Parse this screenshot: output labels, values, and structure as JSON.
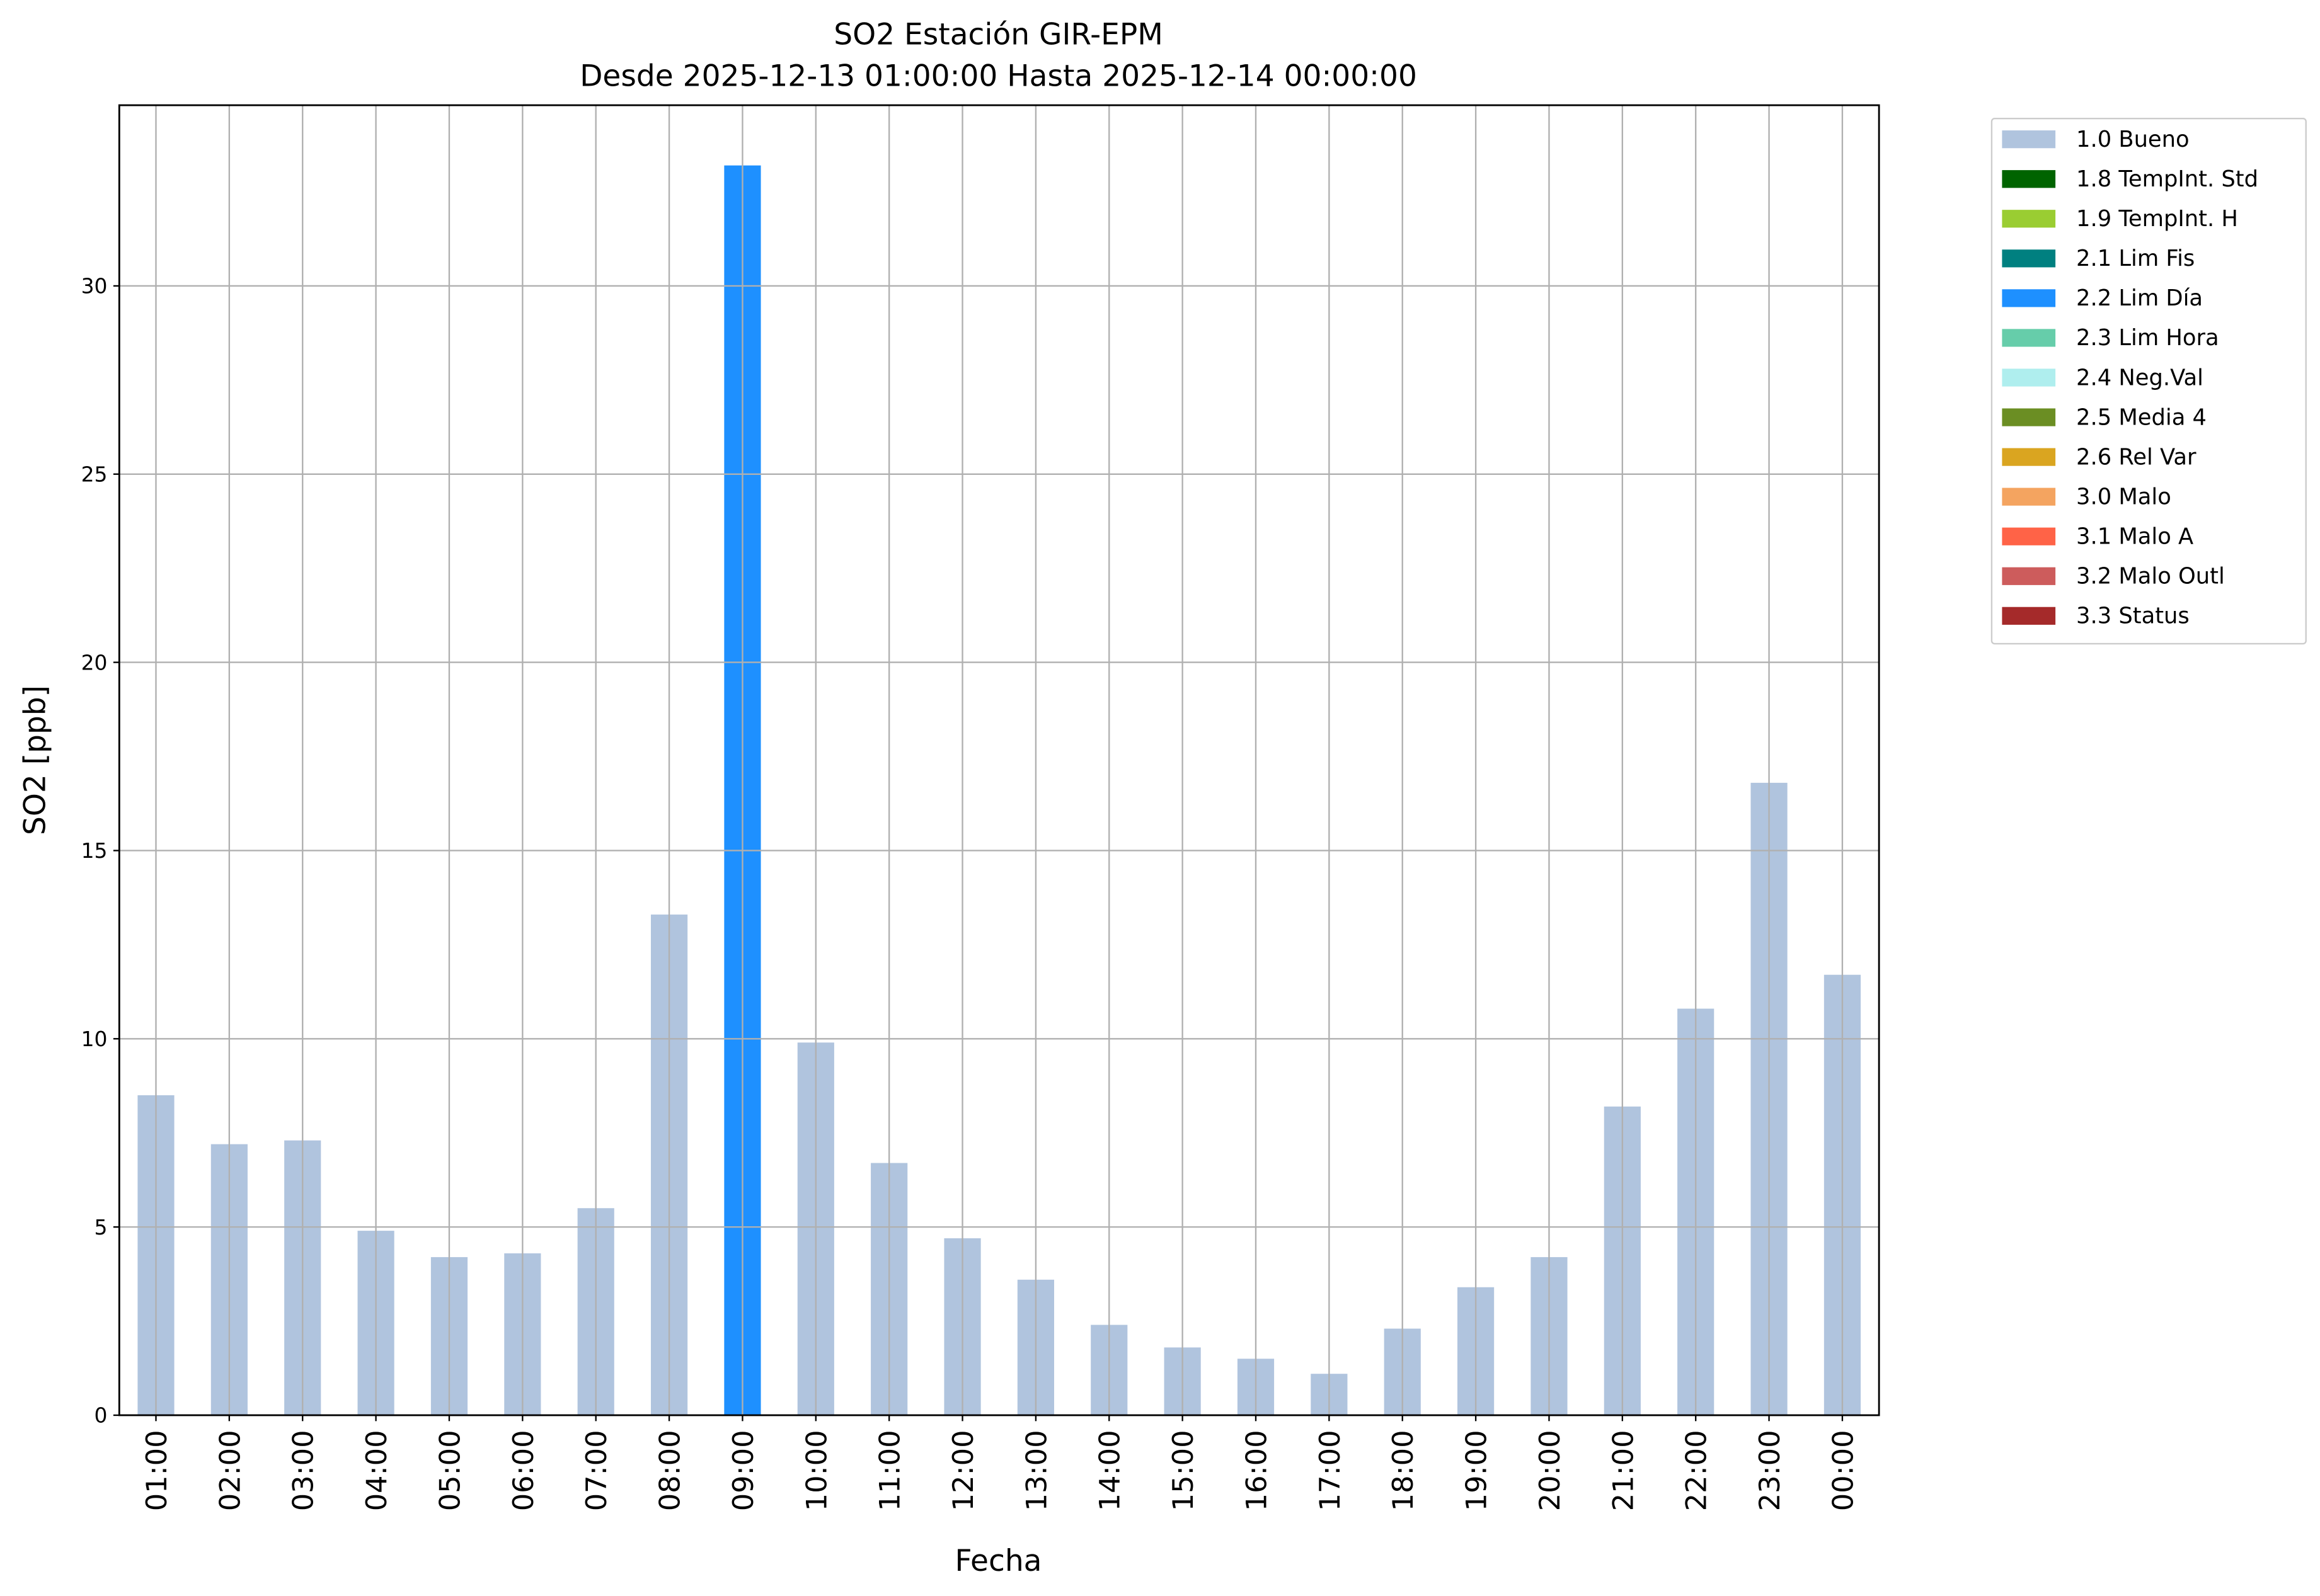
{
  "chart_data": {
    "type": "bar",
    "stacked": true,
    "title": "SO2 Estación GIR-EPM",
    "subtitle": "Desde 2025-12-13 01:00:00 Hasta 2025-12-14 00:00:00",
    "x_label": "Fecha",
    "y_label": "SO2 [ppb]",
    "categories": [
      "01:00",
      "02:00",
      "03:00",
      "04:00",
      "05:00",
      "06:00",
      "07:00",
      "08:00",
      "09:00",
      "10:00",
      "11:00",
      "12:00",
      "13:00",
      "14:00",
      "15:00",
      "16:00",
      "17:00",
      "18:00",
      "19:00",
      "20:00",
      "21:00",
      "22:00",
      "23:00",
      "00:00"
    ],
    "series": [
      {
        "name": "1.0 Bueno",
        "color": "#b0c4de",
        "values": [
          8.5,
          7.2,
          7.3,
          4.9,
          4.2,
          4.3,
          5.5,
          13.3,
          null,
          9.9,
          6.7,
          4.7,
          3.6,
          2.4,
          1.8,
          1.5,
          1.1,
          2.3,
          3.4,
          4.2,
          8.2,
          10.8,
          16.8,
          11.7
        ]
      },
      {
        "name": "1.8 TempInt. Std",
        "color": "#006400",
        "values": [
          null,
          null,
          null,
          null,
          null,
          null,
          null,
          null,
          null,
          null,
          null,
          null,
          null,
          null,
          null,
          null,
          null,
          null,
          null,
          null,
          null,
          null,
          null,
          null
        ]
      },
      {
        "name": "1.9 TempInt. H",
        "color": "#9acd32",
        "values": [
          null,
          null,
          null,
          null,
          null,
          null,
          null,
          null,
          null,
          null,
          null,
          null,
          null,
          null,
          null,
          null,
          null,
          null,
          null,
          null,
          null,
          null,
          null,
          null
        ]
      },
      {
        "name": "2.1 Lim Fis",
        "color": "#008080",
        "values": [
          null,
          null,
          null,
          null,
          null,
          null,
          null,
          null,
          null,
          null,
          null,
          null,
          null,
          null,
          null,
          null,
          null,
          null,
          null,
          null,
          null,
          null,
          null,
          null
        ]
      },
      {
        "name": "2.2 Lim Día",
        "color": "#1e90ff",
        "values": [
          null,
          null,
          null,
          null,
          null,
          null,
          null,
          null,
          33.2,
          null,
          null,
          null,
          null,
          null,
          null,
          null,
          null,
          null,
          null,
          null,
          null,
          null,
          null,
          null
        ]
      },
      {
        "name": "2.3 Lim Hora",
        "color": "#66cdaa",
        "values": [
          null,
          null,
          null,
          null,
          null,
          null,
          null,
          null,
          null,
          null,
          null,
          null,
          null,
          null,
          null,
          null,
          null,
          null,
          null,
          null,
          null,
          null,
          null,
          null
        ]
      },
      {
        "name": "2.4 Neg.Val",
        "color": "#afeeee",
        "values": [
          null,
          null,
          null,
          null,
          null,
          null,
          null,
          null,
          null,
          null,
          null,
          null,
          null,
          null,
          null,
          null,
          null,
          null,
          null,
          null,
          null,
          null,
          null,
          null
        ]
      },
      {
        "name": "2.5 Media 4",
        "color": "#6b8e23",
        "values": [
          null,
          null,
          null,
          null,
          null,
          null,
          null,
          null,
          null,
          null,
          null,
          null,
          null,
          null,
          null,
          null,
          null,
          null,
          null,
          null,
          null,
          null,
          null,
          null
        ]
      },
      {
        "name": "2.6 Rel Var",
        "color": "#daa520",
        "values": [
          null,
          null,
          null,
          null,
          null,
          null,
          null,
          null,
          null,
          null,
          null,
          null,
          null,
          null,
          null,
          null,
          null,
          null,
          null,
          null,
          null,
          null,
          null,
          null
        ]
      },
      {
        "name": "3.0 Malo",
        "color": "#f4a460",
        "values": [
          null,
          null,
          null,
          null,
          null,
          null,
          null,
          null,
          null,
          null,
          null,
          null,
          null,
          null,
          null,
          null,
          null,
          null,
          null,
          null,
          null,
          null,
          null,
          null
        ]
      },
      {
        "name": "3.1 Malo A",
        "color": "#ff6347",
        "values": [
          null,
          null,
          null,
          null,
          null,
          null,
          null,
          null,
          null,
          null,
          null,
          null,
          null,
          null,
          null,
          null,
          null,
          null,
          null,
          null,
          null,
          null,
          null,
          null
        ]
      },
      {
        "name": "3.2 Malo Outl",
        "color": "#cd5c5c",
        "values": [
          null,
          null,
          null,
          null,
          null,
          null,
          null,
          null,
          null,
          null,
          null,
          null,
          null,
          null,
          null,
          null,
          null,
          null,
          null,
          null,
          null,
          null,
          null,
          null
        ]
      },
      {
        "name": "3.3 Status",
        "color": "#a52a2a",
        "values": [
          null,
          null,
          null,
          null,
          null,
          null,
          null,
          null,
          null,
          null,
          null,
          null,
          null,
          null,
          null,
          null,
          null,
          null,
          null,
          null,
          null,
          null,
          null,
          null
        ]
      }
    ],
    "ylim": [
      0,
      34.8
    ],
    "yticks": [
      0,
      5,
      10,
      15,
      20,
      25,
      30
    ],
    "grid": true,
    "legend": "outside-upper-right"
  }
}
